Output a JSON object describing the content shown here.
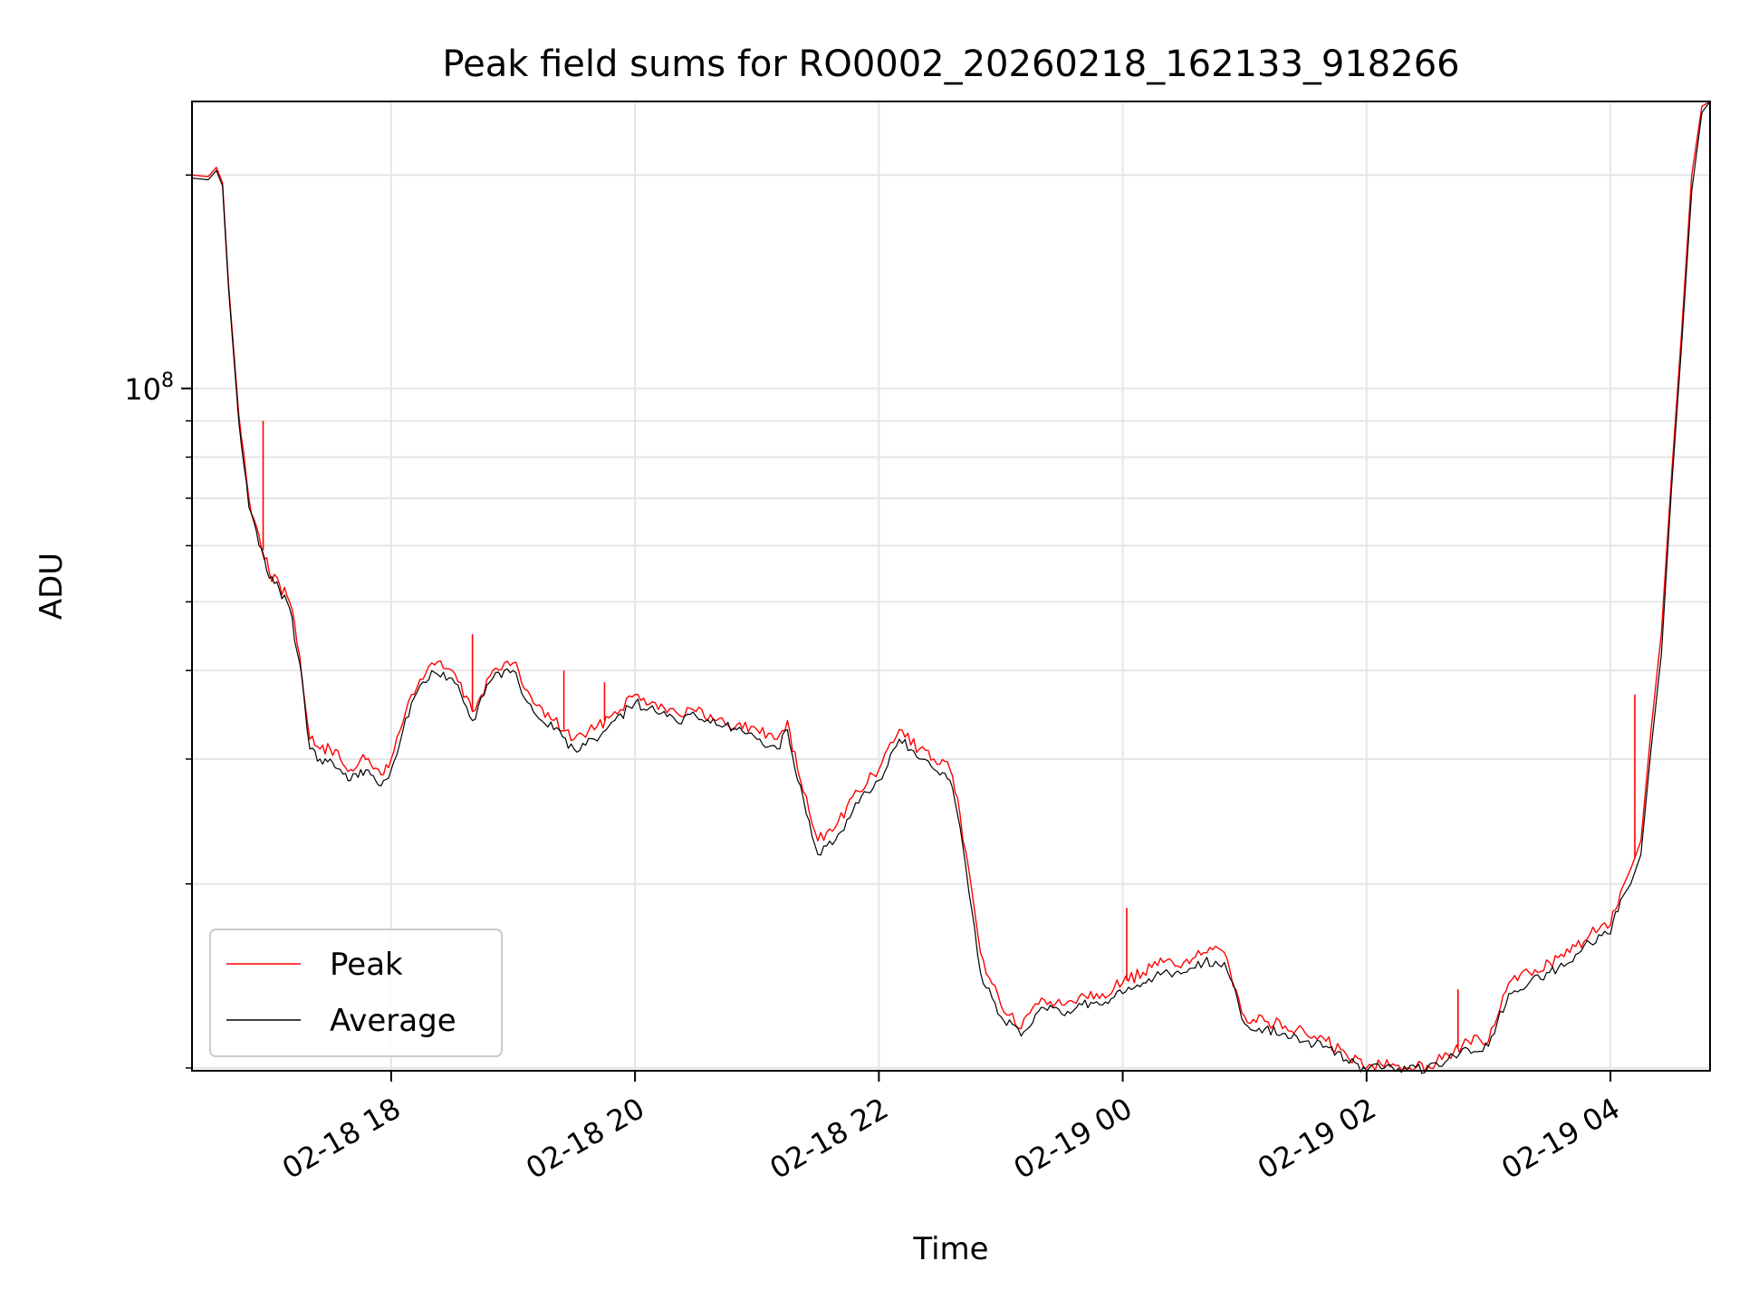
{
  "chart_data": {
    "type": "line",
    "title": "Peak field sums for RO0002_20260218_162133_918266",
    "xlabel": "Time",
    "ylabel": "ADU",
    "y_scale": "log",
    "ylim": [
      10900000,
      254000000
    ],
    "xlim": [
      "2026-02-18 16:22",
      "2026-02-19 04:49"
    ],
    "x_ticks": [
      "2026-02-18 18:00",
      "2026-02-18 20:00",
      "2026-02-18 22:00",
      "2026-02-19 00:00",
      "2026-02-19 02:00",
      "2026-02-19 04:00"
    ],
    "x_tick_labels": [
      "02-18 18",
      "02-18 20",
      "02-18 22",
      "02-19 00",
      "02-19 02",
      "02-19 04"
    ],
    "y_major_tick_labels": [
      {
        "value": 100000000,
        "base": "10",
        "exp": "8"
      }
    ],
    "y_minor_ticks": [
      11000000,
      20000000,
      30000000,
      40000000,
      50000000,
      60000000,
      70000000,
      80000000,
      90000000,
      200000000
    ],
    "grid": true,
    "legend": {
      "position": "lower-left"
    },
    "series": [
      {
        "name": "Peak",
        "color": "#ff0000",
        "x": [
          "2026-02-18 16:22",
          "2026-02-18 16:30",
          "2026-02-18 16:34",
          "2026-02-18 16:37",
          "2026-02-18 16:40",
          "2026-02-18 16:45",
          "2026-02-18 16:50",
          "2026-02-18 16:55",
          "2026-02-18 17:00",
          "2026-02-18 17:05",
          "2026-02-18 17:10",
          "2026-02-18 17:15",
          "2026-02-18 17:20",
          "2026-02-18 17:25",
          "2026-02-18 17:30",
          "2026-02-18 17:35",
          "2026-02-18 17:40",
          "2026-02-18 17:45",
          "2026-02-18 17:50",
          "2026-02-18 17:55",
          "2026-02-18 18:00",
          "2026-02-18 18:10",
          "2026-02-18 18:20",
          "2026-02-18 18:30",
          "2026-02-18 18:40",
          "2026-02-18 18:50",
          "2026-02-18 19:00",
          "2026-02-18 19:10",
          "2026-02-18 19:20",
          "2026-02-18 19:30",
          "2026-02-18 19:40",
          "2026-02-18 19:50",
          "2026-02-18 20:00",
          "2026-02-18 20:10",
          "2026-02-18 20:20",
          "2026-02-18 20:30",
          "2026-02-18 20:40",
          "2026-02-18 20:50",
          "2026-02-18 21:00",
          "2026-02-18 21:10",
          "2026-02-18 21:15",
          "2026-02-18 21:20",
          "2026-02-18 21:30",
          "2026-02-18 21:40",
          "2026-02-18 21:50",
          "2026-02-18 22:00",
          "2026-02-18 22:10",
          "2026-02-18 22:20",
          "2026-02-18 22:30",
          "2026-02-18 22:35",
          "2026-02-18 22:40",
          "2026-02-18 22:50",
          "2026-02-18 23:00",
          "2026-02-18 23:10",
          "2026-02-18 23:20",
          "2026-02-18 23:30",
          "2026-02-18 23:40",
          "2026-02-18 23:50",
          "2026-02-19 00:00",
          "2026-02-19 00:10",
          "2026-02-19 00:20",
          "2026-02-19 00:30",
          "2026-02-19 00:40",
          "2026-02-19 00:50",
          "2026-02-19 01:00",
          "2026-02-19 01:10",
          "2026-02-19 01:20",
          "2026-02-19 01:30",
          "2026-02-19 01:40",
          "2026-02-19 01:50",
          "2026-02-19 02:00",
          "2026-02-19 02:10",
          "2026-02-19 02:20",
          "2026-02-19 02:30",
          "2026-02-19 02:40",
          "2026-02-19 02:50",
          "2026-02-19 03:00",
          "2026-02-19 03:10",
          "2026-02-19 03:20",
          "2026-02-19 03:30",
          "2026-02-19 03:40",
          "2026-02-19 03:50",
          "2026-02-19 04:00",
          "2026-02-19 04:05",
          "2026-02-19 04:10",
          "2026-02-19 04:15",
          "2026-02-19 04:20",
          "2026-02-19 04:25",
          "2026-02-19 04:30",
          "2026-02-19 04:35",
          "2026-02-19 04:40",
          "2026-02-19 04:45",
          "2026-02-19 04:49"
        ],
        "values": [
          200000000,
          199000000,
          205000000,
          195000000,
          140000000,
          92000000,
          70000000,
          62000000,
          55000000,
          53000000,
          50000000,
          42000000,
          32000000,
          31000000,
          31000000,
          30000000,
          29000000,
          30000000,
          29500000,
          28500000,
          30000000,
          37000000,
          41000000,
          40000000,
          35000000,
          40000000,
          41000000,
          36000000,
          34000000,
          32000000,
          33000000,
          35000000,
          37000000,
          36000000,
          35000000,
          35000000,
          34000000,
          33500000,
          33000000,
          32000000,
          34000000,
          29000000,
          23000000,
          24500000,
          27000000,
          29000000,
          33000000,
          31000000,
          29500000,
          29000000,
          25000000,
          16000000,
          13500000,
          12500000,
          13800000,
          13500000,
          14000000,
          14000000,
          14500000,
          15000000,
          15500000,
          15500000,
          16000000,
          16000000,
          13000000,
          12800000,
          12600000,
          12300000,
          12000000,
          11500000,
          11000000,
          11300000,
          11000000,
          11100000,
          11500000,
          12000000,
          12000000,
          14500000,
          15000000,
          15500000,
          16000000,
          17000000,
          17500000,
          19500000,
          21000000,
          23000000,
          33000000,
          45000000,
          75000000,
          120000000,
          200000000,
          250000000,
          254000000
        ],
        "spikes": [
          {
            "x": "2026-02-18 16:57",
            "value": 90000000
          },
          {
            "x": "2026-02-18 18:40",
            "value": 45000000
          },
          {
            "x": "2026-02-18 19:25",
            "value": 40000000
          },
          {
            "x": "2026-02-18 19:45",
            "value": 38500000
          },
          {
            "x": "2026-02-19 00:02",
            "value": 18500000
          },
          {
            "x": "2026-02-19 02:45",
            "value": 14200000
          },
          {
            "x": "2026-02-19 04:12",
            "value": 37000000
          }
        ]
      },
      {
        "name": "Average",
        "color": "#000000",
        "x": [
          "2026-02-18 16:22",
          "2026-02-18 16:30",
          "2026-02-18 16:34",
          "2026-02-18 16:37",
          "2026-02-18 16:40",
          "2026-02-18 16:45",
          "2026-02-18 16:50",
          "2026-02-18 16:55",
          "2026-02-18 17:00",
          "2026-02-18 17:05",
          "2026-02-18 17:10",
          "2026-02-18 17:15",
          "2026-02-18 17:20",
          "2026-02-18 17:25",
          "2026-02-18 17:30",
          "2026-02-18 17:35",
          "2026-02-18 17:40",
          "2026-02-18 17:45",
          "2026-02-18 17:50",
          "2026-02-18 17:55",
          "2026-02-18 18:00",
          "2026-02-18 18:10",
          "2026-02-18 18:20",
          "2026-02-18 18:30",
          "2026-02-18 18:40",
          "2026-02-18 18:50",
          "2026-02-18 19:00",
          "2026-02-18 19:10",
          "2026-02-18 19:20",
          "2026-02-18 19:30",
          "2026-02-18 19:40",
          "2026-02-18 19:50",
          "2026-02-18 20:00",
          "2026-02-18 20:10",
          "2026-02-18 20:20",
          "2026-02-18 20:30",
          "2026-02-18 20:40",
          "2026-02-18 20:50",
          "2026-02-18 21:00",
          "2026-02-18 21:10",
          "2026-02-18 21:15",
          "2026-02-18 21:20",
          "2026-02-18 21:30",
          "2026-02-18 21:40",
          "2026-02-18 21:50",
          "2026-02-18 22:00",
          "2026-02-18 22:10",
          "2026-02-18 22:20",
          "2026-02-18 22:30",
          "2026-02-18 22:35",
          "2026-02-18 22:40",
          "2026-02-18 22:50",
          "2026-02-18 23:00",
          "2026-02-18 23:10",
          "2026-02-18 23:20",
          "2026-02-18 23:30",
          "2026-02-18 23:40",
          "2026-02-18 23:50",
          "2026-02-19 00:00",
          "2026-02-19 00:10",
          "2026-02-19 00:20",
          "2026-02-19 00:30",
          "2026-02-19 00:40",
          "2026-02-19 00:50",
          "2026-02-19 01:00",
          "2026-02-19 01:10",
          "2026-02-19 01:20",
          "2026-02-19 01:30",
          "2026-02-19 01:40",
          "2026-02-19 01:50",
          "2026-02-19 02:00",
          "2026-02-19 02:10",
          "2026-02-19 02:20",
          "2026-02-19 02:30",
          "2026-02-19 02:40",
          "2026-02-19 02:50",
          "2026-02-19 03:00",
          "2026-02-19 03:10",
          "2026-02-19 03:20",
          "2026-02-19 03:30",
          "2026-02-19 03:40",
          "2026-02-19 03:50",
          "2026-02-19 04:00",
          "2026-02-19 04:05",
          "2026-02-19 04:10",
          "2026-02-19 04:15",
          "2026-02-19 04:20",
          "2026-02-19 04:25",
          "2026-02-19 04:30",
          "2026-02-19 04:35",
          "2026-02-19 04:40",
          "2026-02-19 04:45",
          "2026-02-19 04:49"
        ],
        "values": [
          198000000,
          197000000,
          203000000,
          193000000,
          138000000,
          90000000,
          68000000,
          60000000,
          54000000,
          52000000,
          49000000,
          41000000,
          31000000,
          30000000,
          30000000,
          29000000,
          28000000,
          29000000,
          28500000,
          27500000,
          29000000,
          36000000,
          40000000,
          39000000,
          34000000,
          39000000,
          40000000,
          35000000,
          33000000,
          31000000,
          32000000,
          34000000,
          36000000,
          35000000,
          34000000,
          34500000,
          33500000,
          33000000,
          32000000,
          31000000,
          33000000,
          28000000,
          22000000,
          23500000,
          26000000,
          28000000,
          32000000,
          30000000,
          28500000,
          28000000,
          24000000,
          15000000,
          13000000,
          12200000,
          13400000,
          13100000,
          13500000,
          13500000,
          14000000,
          14500000,
          15000000,
          15000000,
          15500000,
          15500000,
          12700000,
          12500000,
          12300000,
          12000000,
          11800000,
          11300000,
          10900000,
          11100000,
          10900000,
          11000000,
          11300000,
          11700000,
          11800000,
          14000000,
          14500000,
          15000000,
          15500000,
          16500000,
          17000000,
          19000000,
          20000000,
          22000000,
          31000000,
          42000000,
          72000000,
          115000000,
          190000000,
          245000000,
          254000000
        ]
      }
    ]
  }
}
